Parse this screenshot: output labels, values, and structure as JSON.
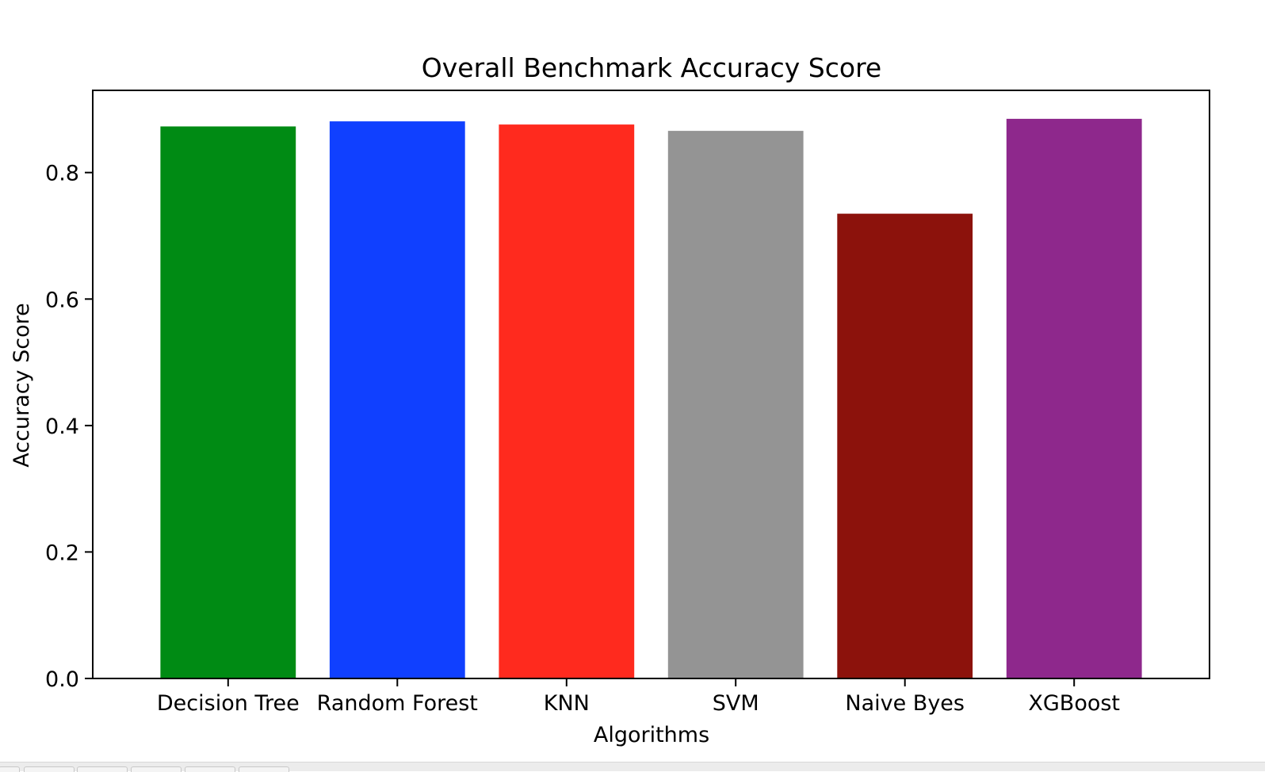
{
  "chart_data": {
    "type": "bar",
    "title": "Overall Benchmark Accuracy Score",
    "xlabel": "Algorithms",
    "ylabel": "Accuracy Score",
    "categories": [
      "Decision Tree",
      "Random Forest",
      "KNN",
      "SVM",
      "Naive Byes",
      "XGBoost"
    ],
    "values": [
      0.873,
      0.881,
      0.876,
      0.866,
      0.735,
      0.885
    ],
    "colors": [
      "#008b14",
      "#1040ff",
      "#ff2a1e",
      "#949494",
      "#8c120c",
      "#8e288c"
    ],
    "ylim": [
      0,
      0.93
    ],
    "yticks": [
      0.0,
      0.2,
      0.4,
      0.6,
      0.8
    ],
    "ytick_labels": [
      "0.0",
      "0.2",
      "0.4",
      "0.6",
      "0.8"
    ],
    "grid": false,
    "legend": "none"
  }
}
